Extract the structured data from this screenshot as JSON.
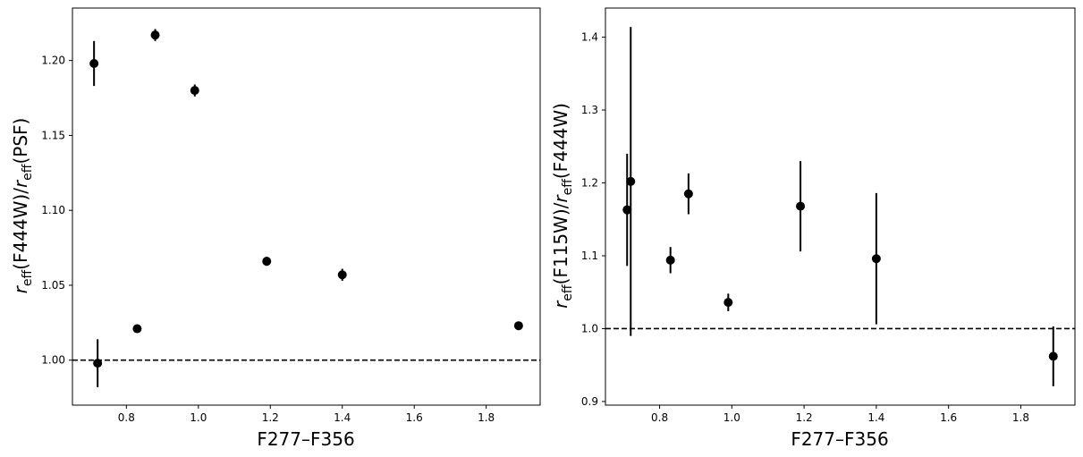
{
  "chart_data": [
    {
      "type": "scatter",
      "xlabel": "F277–F356",
      "ylabel": "r_eff(F444W)/r_eff(PSF)",
      "ylabel_parts": {
        "r": "r",
        "sub1": "eff",
        "mid": "(F444W)/",
        "r2": "r",
        "sub2": "eff",
        "tail": "(PSF)"
      },
      "xlim": [
        0.65,
        1.95
      ],
      "ylim": [
        0.97,
        1.235
      ],
      "xticks": [
        0.8,
        1.0,
        1.2,
        1.4,
        1.6,
        1.8
      ],
      "xtick_labels": [
        "0.8",
        "1.0",
        "1.2",
        "1.4",
        "1.6",
        "1.8"
      ],
      "yticks": [
        1.0,
        1.05,
        1.1,
        1.15,
        1.2
      ],
      "ytick_labels": [
        "1.00",
        "1.05",
        "1.10",
        "1.15",
        "1.20"
      ],
      "reference_line": 1.0,
      "grid": false,
      "points": [
        {
          "x": 0.71,
          "y": 1.198,
          "yerr": 0.015
        },
        {
          "x": 0.72,
          "y": 0.998,
          "yerr": 0.016
        },
        {
          "x": 0.83,
          "y": 1.021,
          "yerr": 0.001
        },
        {
          "x": 0.88,
          "y": 1.217,
          "yerr": 0.004
        },
        {
          "x": 0.99,
          "y": 1.18,
          "yerr": 0.004
        },
        {
          "x": 1.19,
          "y": 1.066,
          "yerr": 0.003
        },
        {
          "x": 1.4,
          "y": 1.057,
          "yerr": 0.004
        },
        {
          "x": 1.89,
          "y": 1.023,
          "yerr": 0.001
        }
      ]
    },
    {
      "type": "scatter",
      "xlabel": "F277–F356",
      "ylabel": "r_eff(F115W)/r_eff(F444W)",
      "ylabel_parts": {
        "r": "r",
        "sub1": "eff",
        "mid": "(F115W)/",
        "r2": "r",
        "sub2": "eff",
        "tail": "(F444W)"
      },
      "xlim": [
        0.65,
        1.95
      ],
      "ylim": [
        0.895,
        1.44
      ],
      "xticks": [
        0.8,
        1.0,
        1.2,
        1.4,
        1.6,
        1.8
      ],
      "xtick_labels": [
        "0.8",
        "1.0",
        "1.2",
        "1.4",
        "1.6",
        "1.8"
      ],
      "yticks": [
        0.9,
        1.0,
        1.1,
        1.2,
        1.3,
        1.4
      ],
      "ytick_labels": [
        "0.9",
        "1.0",
        "1.1",
        "1.2",
        "1.3",
        "1.4"
      ],
      "reference_line": 1.0,
      "grid": false,
      "points": [
        {
          "x": 0.71,
          "y": 1.163,
          "yerr": 0.077
        },
        {
          "x": 0.72,
          "y": 1.202,
          "yerr": 0.212
        },
        {
          "x": 0.83,
          "y": 1.094,
          "yerr": 0.018
        },
        {
          "x": 0.88,
          "y": 1.185,
          "yerr": 0.028
        },
        {
          "x": 0.99,
          "y": 1.036,
          "yerr": 0.012
        },
        {
          "x": 1.19,
          "y": 1.168,
          "yerr": 0.062
        },
        {
          "x": 1.4,
          "y": 1.096,
          "yerr": 0.09
        },
        {
          "x": 1.89,
          "y": 0.962,
          "yerr": 0.041
        }
      ]
    }
  ]
}
